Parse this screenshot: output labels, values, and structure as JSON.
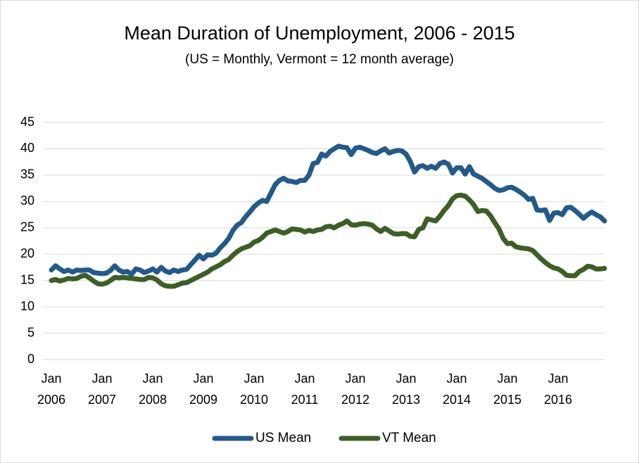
{
  "chart_data": {
    "type": "line",
    "title": "Mean Duration of Unemployment, 2006 - 2015",
    "subtitle": "(US = Monthly, Vermont = 12 month average)",
    "categories": [
      "Jan 2006",
      null,
      null,
      null,
      null,
      null,
      null,
      null,
      null,
      null,
      null,
      null,
      "Jan 2007",
      null,
      null,
      null,
      null,
      null,
      null,
      null,
      null,
      null,
      null,
      null,
      "Jan 2008",
      null,
      null,
      null,
      null,
      null,
      null,
      null,
      null,
      null,
      null,
      null,
      "Jan 2009",
      null,
      null,
      null,
      null,
      null,
      null,
      null,
      null,
      null,
      null,
      null,
      "Jan 2010",
      null,
      null,
      null,
      null,
      null,
      null,
      null,
      null,
      null,
      null,
      null,
      "Jan 2011",
      null,
      null,
      null,
      null,
      null,
      null,
      null,
      null,
      null,
      null,
      null,
      "Jan 2012",
      null,
      null,
      null,
      null,
      null,
      null,
      null,
      null,
      null,
      null,
      null,
      "Jan 2013",
      null,
      null,
      null,
      null,
      null,
      null,
      null,
      null,
      null,
      null,
      null,
      "Jan 2014",
      null,
      null,
      null,
      null,
      null,
      null,
      null,
      null,
      null,
      null,
      null,
      "Jan 2015",
      null,
      null,
      null,
      null,
      null,
      null,
      null,
      null,
      null,
      null,
      null,
      "Jan 2016",
      null,
      null,
      null,
      null,
      null,
      null,
      null,
      null,
      null,
      null,
      null
    ],
    "series": [
      {
        "name": "US Mean",
        "color": "#245a8a",
        "values": [
          17,
          17.8,
          17.2,
          16.7,
          17,
          16.6,
          17,
          16.9,
          17,
          17,
          16.5,
          16.4,
          16.3,
          16.4,
          16.9,
          17.8,
          17,
          16.6,
          16.7,
          16.2,
          17.2,
          17,
          16.5,
          16.8,
          17.2,
          16.6,
          17.5,
          16.8,
          16.5,
          17,
          16.7,
          17,
          17.1,
          18,
          18.9,
          19.8,
          19.1,
          19.9,
          19.8,
          20.2,
          21.2,
          22,
          23,
          24.5,
          25.5,
          26,
          27.1,
          28,
          29,
          29.7,
          30.2,
          30,
          31.6,
          33.2,
          34,
          34.4,
          33.9,
          33.8,
          33.6,
          34,
          34,
          35,
          37.2,
          37.4,
          39,
          38.6,
          39.5,
          40,
          40.5,
          40.3,
          40.2,
          38.9,
          40.1,
          40.3,
          40,
          39.7,
          39.3,
          39.1,
          39.6,
          40,
          39.2,
          39.5,
          39.7,
          39.6,
          39,
          37.6,
          35.6,
          36.6,
          36.8,
          36.3,
          36.7,
          36.3,
          37.2,
          37.5,
          37.1,
          35.4,
          36.4,
          36.4,
          35.2,
          36.6,
          35.2,
          34.8,
          34.4,
          33.8,
          33.2,
          32.5,
          32.1,
          32.2,
          32.6,
          32.7,
          32.3,
          31.8,
          31.2,
          30.4,
          30.6,
          28.4,
          28.3,
          28.4,
          26.4,
          27.8,
          27.9,
          27.5,
          28.8,
          28.9,
          28.3,
          27.6,
          26.8,
          27.5,
          28,
          27.5,
          27.1,
          26.3
        ]
      },
      {
        "name": "VT Mean",
        "color": "#3d5e27",
        "values": [
          15,
          15.2,
          14.9,
          15.1,
          15.4,
          15.3,
          15.4,
          15.8,
          16,
          15.5,
          14.9,
          14.4,
          14.3,
          14.5,
          15,
          15.6,
          15.5,
          15.6,
          15.5,
          15.4,
          15.3,
          15.2,
          15.2,
          15.6,
          15.5,
          15.1,
          14.4,
          14,
          13.9,
          13.9,
          14.2,
          14.5,
          14.6,
          15,
          15.4,
          15.8,
          16.2,
          16.6,
          17.2,
          17.6,
          18,
          18.6,
          19,
          19.8,
          20.5,
          21,
          21.3,
          21.6,
          22.3,
          22.6,
          23.2,
          24,
          24.3,
          24.6,
          24.3,
          24,
          24.3,
          24.8,
          24.7,
          24.6,
          24.2,
          24.5,
          24.3,
          24.6,
          24.7,
          25.2,
          25.3,
          25,
          25.5,
          25.8,
          26.3,
          25.6,
          25.5,
          25.7,
          25.8,
          25.7,
          25.5,
          24.8,
          24.3,
          24.9,
          24.4,
          23.9,
          23.8,
          23.9,
          23.9,
          23.4,
          23.3,
          24.7,
          25,
          26.7,
          26.5,
          26.3,
          27.2,
          28.3,
          29.2,
          30.5,
          31.1,
          31.2,
          31,
          30.3,
          29.4,
          28.1,
          28.3,
          28.2,
          27.3,
          26,
          24.8,
          23,
          22,
          22.1,
          21.4,
          21.2,
          21.1,
          21,
          20.7,
          19.9,
          19.1,
          18.4,
          17.8,
          17.4,
          17.2,
          16.7,
          16,
          15.9,
          15.9,
          16.7,
          17.1,
          17.7,
          17.6,
          17.2,
          17.2,
          17.3
        ]
      }
    ],
    "ylim": [
      0,
      45
    ],
    "yticks": [
      0,
      5,
      10,
      15,
      20,
      25,
      30,
      35,
      40,
      45
    ],
    "grid": true,
    "legend": "bottom"
  }
}
